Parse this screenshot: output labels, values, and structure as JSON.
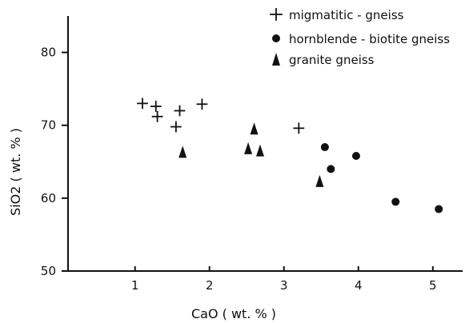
{
  "chart_data": {
    "type": "scatter",
    "title": "",
    "xlabel": "CaO ( wt. % )",
    "ylabel": "SiO2 ( wt. % )",
    "xlim": [
      0.1,
      5.4
    ],
    "ylim": [
      50,
      85
    ],
    "x_ticks": [
      1,
      2,
      3,
      4,
      5
    ],
    "y_ticks": [
      50,
      60,
      70,
      80
    ],
    "grid": false,
    "legend_position": "top-right",
    "series": [
      {
        "name": "migmatitic - gneiss",
        "marker": "plus",
        "color": "#111111",
        "points": [
          {
            "x": 1.1,
            "y": 73.0
          },
          {
            "x": 1.28,
            "y": 72.6
          },
          {
            "x": 1.3,
            "y": 71.2
          },
          {
            "x": 1.55,
            "y": 69.8
          },
          {
            "x": 1.6,
            "y": 72.0
          },
          {
            "x": 1.9,
            "y": 72.9
          },
          {
            "x": 3.2,
            "y": 69.6
          }
        ]
      },
      {
        "name": "hornblende - biotite gneiss",
        "marker": "circle",
        "color": "#111111",
        "points": [
          {
            "x": 3.55,
            "y": 67.0
          },
          {
            "x": 3.63,
            "y": 64.0
          },
          {
            "x": 3.97,
            "y": 65.8
          },
          {
            "x": 4.5,
            "y": 59.5
          },
          {
            "x": 5.08,
            "y": 58.5
          }
        ]
      },
      {
        "name": "granite gneiss",
        "marker": "triangle",
        "color": "#111111",
        "points": [
          {
            "x": 1.64,
            "y": 66.3
          },
          {
            "x": 2.52,
            "y": 66.8
          },
          {
            "x": 2.6,
            "y": 69.5
          },
          {
            "x": 2.68,
            "y": 66.5
          },
          {
            "x": 3.48,
            "y": 62.3
          }
        ]
      }
    ]
  }
}
